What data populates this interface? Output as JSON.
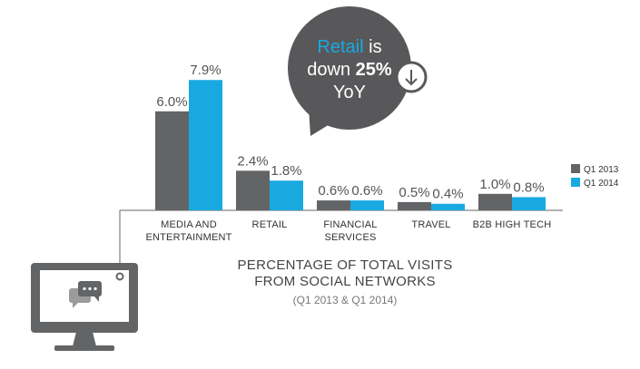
{
  "chart_data": {
    "type": "bar",
    "title": "PERCENTAGE OF TOTAL VISITS FROM SOCIAL NETWORKS",
    "title_lines": [
      "PERCENTAGE OF TOTAL VISITS",
      "FROM SOCIAL NETWORKS"
    ],
    "subtitle": "(Q1 2013 & Q1 2014)",
    "categories": [
      "MEDIA AND ENTERTAINMENT",
      "RETAIL",
      "FINANCIAL SERVICES",
      "TRAVEL",
      "B2B HIGH TECH"
    ],
    "category_lines": [
      [
        "MEDIA AND",
        "ENTERTAINMENT"
      ],
      [
        "RETAIL"
      ],
      [
        "FINANCIAL",
        "SERVICES"
      ],
      [
        "TRAVEL"
      ],
      [
        "B2B HIGH TECH"
      ]
    ],
    "series": [
      {
        "name": "Q1 2013",
        "color": "#636466",
        "values": [
          6.0,
          2.4,
          0.6,
          0.5,
          1.0
        ],
        "labels": [
          "6.0%",
          "2.4%",
          "0.6%",
          "0.5%",
          "1.0%"
        ]
      },
      {
        "name": "Q1 2014",
        "color": "#19a9e1",
        "values": [
          7.9,
          1.8,
          0.6,
          0.4,
          0.8
        ],
        "labels": [
          "7.9%",
          "1.8%",
          "0.6%",
          "0.4%",
          "0.8%"
        ]
      }
    ],
    "unit": "%",
    "legend_position": "right",
    "grid": false
  },
  "callout": {
    "highlight": "Retail",
    "word_is": "is",
    "word_down": "down",
    "percent": "25%",
    "yoy": "YoY",
    "icon": "down-arrow-circle-icon"
  },
  "decoration": {
    "icon": "monitor-chat-icon"
  },
  "colors": {
    "q1_2013": "#636466",
    "q1_2014": "#19a9e1",
    "callout_bg": "#58585a",
    "text": "#444444"
  }
}
